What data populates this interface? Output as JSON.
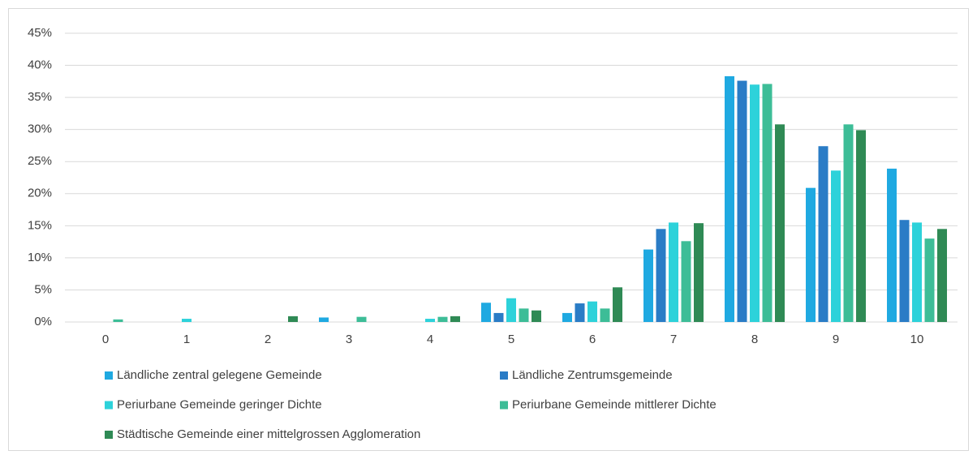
{
  "chart_data": {
    "type": "bar",
    "categories": [
      "0",
      "1",
      "2",
      "3",
      "4",
      "5",
      "6",
      "7",
      "8",
      "9",
      "10"
    ],
    "series": [
      {
        "name": "Ländliche zentral gelegene Gemeinde",
        "color": "#1fa9e1",
        "values": [
          0,
          0,
          0,
          0.7,
          0,
          3.0,
          1.4,
          11.3,
          38.3,
          20.9,
          23.9
        ]
      },
      {
        "name": "Ländliche Zentrumsgemeinde",
        "color": "#2a7cc6",
        "values": [
          0,
          0,
          0,
          0,
          0,
          1.4,
          2.9,
          14.5,
          37.6,
          27.4,
          15.9
        ]
      },
      {
        "name": "Periurbane Gemeinde geringer Dichte",
        "color": "#2dd2da",
        "values": [
          0,
          0.5,
          0,
          0,
          0.5,
          3.7,
          3.2,
          15.5,
          37.0,
          23.6,
          15.5
        ]
      },
      {
        "name": "Periurbane Gemeinde mittlerer Dichte",
        "color": "#3dbd97",
        "values": [
          0.4,
          0,
          0,
          0.8,
          0.8,
          2.1,
          2.1,
          12.6,
          37.1,
          30.8,
          13.0
        ]
      },
      {
        "name": "Städtische Gemeinde einer mittelgrossen Agglomeration",
        "color": "#2f8a55",
        "values": [
          0,
          0,
          0.9,
          0,
          0.9,
          1.8,
          5.4,
          15.4,
          30.8,
          29.9,
          14.5
        ]
      }
    ],
    "ylim": [
      0,
      45
    ],
    "yticks": [
      {
        "value": 0,
        "label": "0%"
      },
      {
        "value": 5,
        "label": "5%"
      },
      {
        "value": 10,
        "label": "10%"
      },
      {
        "value": 15,
        "label": "15%"
      },
      {
        "value": 20,
        "label": "20%"
      },
      {
        "value": 25,
        "label": "25%"
      },
      {
        "value": 30,
        "label": "30%"
      },
      {
        "value": 35,
        "label": "35%"
      },
      {
        "value": 40,
        "label": "40%"
      },
      {
        "value": 45,
        "label": "45%"
      }
    ],
    "grid": true,
    "legend": "bottom"
  }
}
